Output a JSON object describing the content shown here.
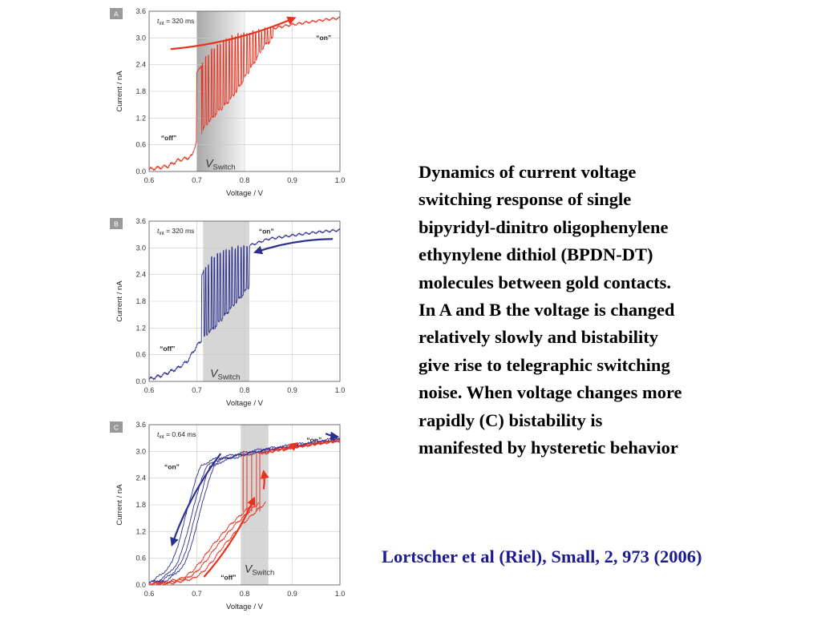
{
  "caption_lines": [
    "Dynamics of current voltage",
    "switching response of single",
    "bipyridyl-dinitro oligophenylene",
    "ethynylene dithiol (BPDN-DT)",
    "molecules between gold contacts.",
    "In A and B the voltage is changed",
    "relatively slowly and bistability",
    "give rise to telegraphic switching",
    "noise. When voltage changes more",
    "rapidly (C) bistability is",
    "manifested by hysteretic behavior"
  ],
  "citation": "Lortscher et al (Riel), Small, 2, 973 (2006)",
  "colors": {
    "red": "#e8321e",
    "blue": "#2b2f8f",
    "band_fill": "#d6d6d6",
    "citation": "#1c1c8f"
  },
  "chart_data": [
    {
      "type": "line",
      "panel": "A",
      "t_int_prefix": "t",
      "t_int_subscript": "int",
      "t_int_value": " = 320 ms",
      "xlabel": "Voltage / V",
      "ylabel": "Current / nA",
      "xlim": [
        0.6,
        1.0
      ],
      "ylim": [
        0.0,
        3.6
      ],
      "xticks": [
        "0.6",
        "0.7",
        "0.8",
        "0.9",
        "1.0"
      ],
      "yticks": [
        "0.0",
        "0.6",
        "1.2",
        "1.8",
        "2.4",
        "3.0",
        "3.6"
      ],
      "band": [
        0.7,
        0.8
      ],
      "band_style": "gradient",
      "band_label_main": "V",
      "band_label_sub": "Switch",
      "band_label_at": [
        0.718,
        0.1
      ],
      "annotations": [
        {
          "text": "“off”",
          "at": [
            0.625,
            0.7
          ]
        },
        {
          "text": "“on”",
          "at": [
            0.95,
            2.95
          ]
        }
      ],
      "series": [
        {
          "color": "red",
          "low": [
            [
              0.6,
              0.05
            ],
            [
              0.64,
              0.12
            ],
            [
              0.66,
              0.25
            ],
            [
              0.68,
              0.3
            ],
            [
              0.69,
              0.35
            ],
            [
              0.7,
              0.72
            ],
            [
              0.72,
              1.05
            ],
            [
              0.74,
              1.3
            ],
            [
              0.76,
              1.5
            ],
            [
              0.78,
              1.75
            ],
            [
              0.8,
              2.1
            ],
            [
              0.82,
              2.45
            ],
            [
              0.84,
              2.8
            ],
            [
              0.86,
              3.0
            ],
            [
              0.88,
              3.05
            ]
          ],
          "high": [
            [
              0.7,
              2.2
            ],
            [
              0.72,
              2.6
            ],
            [
              0.74,
              2.8
            ],
            [
              0.76,
              2.95
            ],
            [
              0.78,
              3.05
            ],
            [
              0.8,
              3.1
            ],
            [
              0.85,
              3.2
            ],
            [
              0.9,
              3.3
            ],
            [
              0.95,
              3.38
            ],
            [
              1.0,
              3.45
            ]
          ],
          "switch_range": [
            0.71,
            0.86
          ]
        }
      ],
      "arrows": [
        {
          "color": "red",
          "from": [
            0.645,
            2.75
          ],
          "to": [
            0.905,
            3.45
          ]
        }
      ]
    },
    {
      "type": "line",
      "panel": "B",
      "t_int_prefix": "t",
      "t_int_subscript": "int",
      "t_int_value": " = 320 ms",
      "xlabel": "Voltage / V",
      "ylabel": "Current / nA",
      "xlim": [
        0.6,
        1.0
      ],
      "ylim": [
        0.0,
        3.6
      ],
      "xticks": [
        "0.6",
        "0.7",
        "0.8",
        "0.9",
        "1.0"
      ],
      "yticks": [
        "0.0",
        "0.6",
        "1.2",
        "1.8",
        "2.4",
        "3.0",
        "3.6"
      ],
      "band": [
        0.713,
        0.81
      ],
      "band_style": "solid",
      "band_label_main": "V",
      "band_label_sub": "Switch",
      "band_label_at": [
        0.728,
        0.1
      ],
      "annotations": [
        {
          "text": "“off”",
          "at": [
            0.622,
            0.68
          ]
        },
        {
          "text": "“on”",
          "at": [
            0.83,
            3.32
          ]
        }
      ],
      "series": [
        {
          "color": "blue",
          "low": [
            [
              0.6,
              0.05
            ],
            [
              0.63,
              0.15
            ],
            [
              0.66,
              0.3
            ],
            [
              0.68,
              0.45
            ],
            [
              0.7,
              0.8
            ],
            [
              0.72,
              1.05
            ],
            [
              0.74,
              1.25
            ],
            [
              0.76,
              1.5
            ],
            [
              0.78,
              1.75
            ],
            [
              0.8,
              2.0
            ],
            [
              0.81,
              2.15
            ]
          ],
          "high": [
            [
              0.71,
              2.4
            ],
            [
              0.73,
              2.75
            ],
            [
              0.75,
              2.9
            ],
            [
              0.78,
              3.0
            ],
            [
              0.81,
              3.05
            ],
            [
              0.85,
              3.2
            ],
            [
              0.9,
              3.28
            ],
            [
              0.95,
              3.35
            ],
            [
              1.0,
              3.4
            ]
          ],
          "switch_range": [
            0.715,
            0.81
          ]
        }
      ],
      "arrows": [
        {
          "color": "blue",
          "from": [
            0.985,
            3.2
          ],
          "to": [
            0.822,
            2.9
          ]
        }
      ]
    },
    {
      "type": "line",
      "panel": "C",
      "t_int_prefix": "t",
      "t_int_subscript": "int",
      "t_int_value": " = 0.64 ms",
      "xlabel": "Voltage / V",
      "ylabel": "Current / nA",
      "xlim": [
        0.6,
        1.0
      ],
      "ylim": [
        0.0,
        3.6
      ],
      "xticks": [
        "0.6",
        "0.7",
        "0.8",
        "0.9",
        "1.0"
      ],
      "yticks": [
        "0.0",
        "0.6",
        "1.2",
        "1.8",
        "2.4",
        "3.0",
        "3.6"
      ],
      "band": [
        0.792,
        0.85
      ],
      "band_style": "solid",
      "band_label_main": "V",
      "band_label_sub": "Switch",
      "band_label_at": [
        0.8,
        0.28
      ],
      "annotations": [
        {
          "text": "“on”",
          "at": [
            0.632,
            2.6
          ]
        },
        {
          "text": "“on”",
          "at": [
            0.93,
            3.2
          ]
        },
        {
          "text": "“off”",
          "at": [
            0.75,
            0.12
          ]
        }
      ],
      "branches": [
        {
          "color": "blue",
          "points": [
            [
              0.6,
              0.05
            ],
            [
              0.62,
              0.1
            ],
            [
              0.64,
              0.25
            ],
            [
              0.66,
              0.5
            ],
            [
              0.67,
              0.8
            ],
            [
              0.68,
              1.2
            ],
            [
              0.69,
              1.6
            ],
            [
              0.7,
              2.0
            ],
            [
              0.71,
              2.4
            ],
            [
              0.72,
              2.65
            ],
            [
              0.74,
              2.8
            ],
            [
              0.77,
              2.88
            ],
            [
              0.8,
              2.95
            ],
            [
              0.85,
              3.05
            ],
            [
              0.9,
              3.12
            ],
            [
              0.95,
              3.2
            ],
            [
              1.0,
              3.28
            ]
          ],
          "offsets": [
            0.0,
            0.016,
            -0.012,
            0.008
          ]
        },
        {
          "color": "red",
          "points": [
            [
              0.6,
              0.02
            ],
            [
              0.64,
              0.05
            ],
            [
              0.68,
              0.15
            ],
            [
              0.7,
              0.3
            ],
            [
              0.72,
              0.55
            ],
            [
              0.74,
              0.85
            ],
            [
              0.76,
              1.1
            ],
            [
              0.78,
              1.35
            ],
            [
              0.8,
              1.55
            ],
            [
              0.82,
              1.75
            ],
            [
              0.83,
              1.85
            ]
          ],
          "offsets": [
            0.0,
            0.014,
            -0.01
          ]
        },
        {
          "color": "red",
          "points": [
            [
              0.83,
              2.95
            ],
            [
              0.87,
              3.05
            ],
            [
              0.9,
              3.1
            ],
            [
              0.95,
              3.18
            ],
            [
              1.0,
              3.25
            ]
          ],
          "offsets": [
            0.0,
            0.01
          ]
        }
      ],
      "jumps": {
        "color": "red",
        "x": [
          0.797,
          0.805,
          0.815,
          0.825,
          0.832
        ],
        "from": 1.65,
        "to": 3.0
      },
      "arrows": [
        {
          "color": "blue",
          "from": [
            0.75,
            2.95
          ],
          "to": [
            0.648,
            0.9
          ]
        },
        {
          "color": "red",
          "from": [
            0.715,
            0.18
          ],
          "to": [
            0.82,
            1.95
          ]
        },
        {
          "color": "red",
          "from": [
            0.84,
            2.15
          ],
          "to": [
            0.84,
            2.55
          ]
        },
        {
          "color": "red",
          "from": [
            0.88,
            3.02
          ],
          "to": [
            0.91,
            3.18
          ]
        },
        {
          "color": "blue",
          "from": [
            0.97,
            3.4
          ],
          "to": [
            0.995,
            3.33
          ]
        }
      ]
    }
  ]
}
